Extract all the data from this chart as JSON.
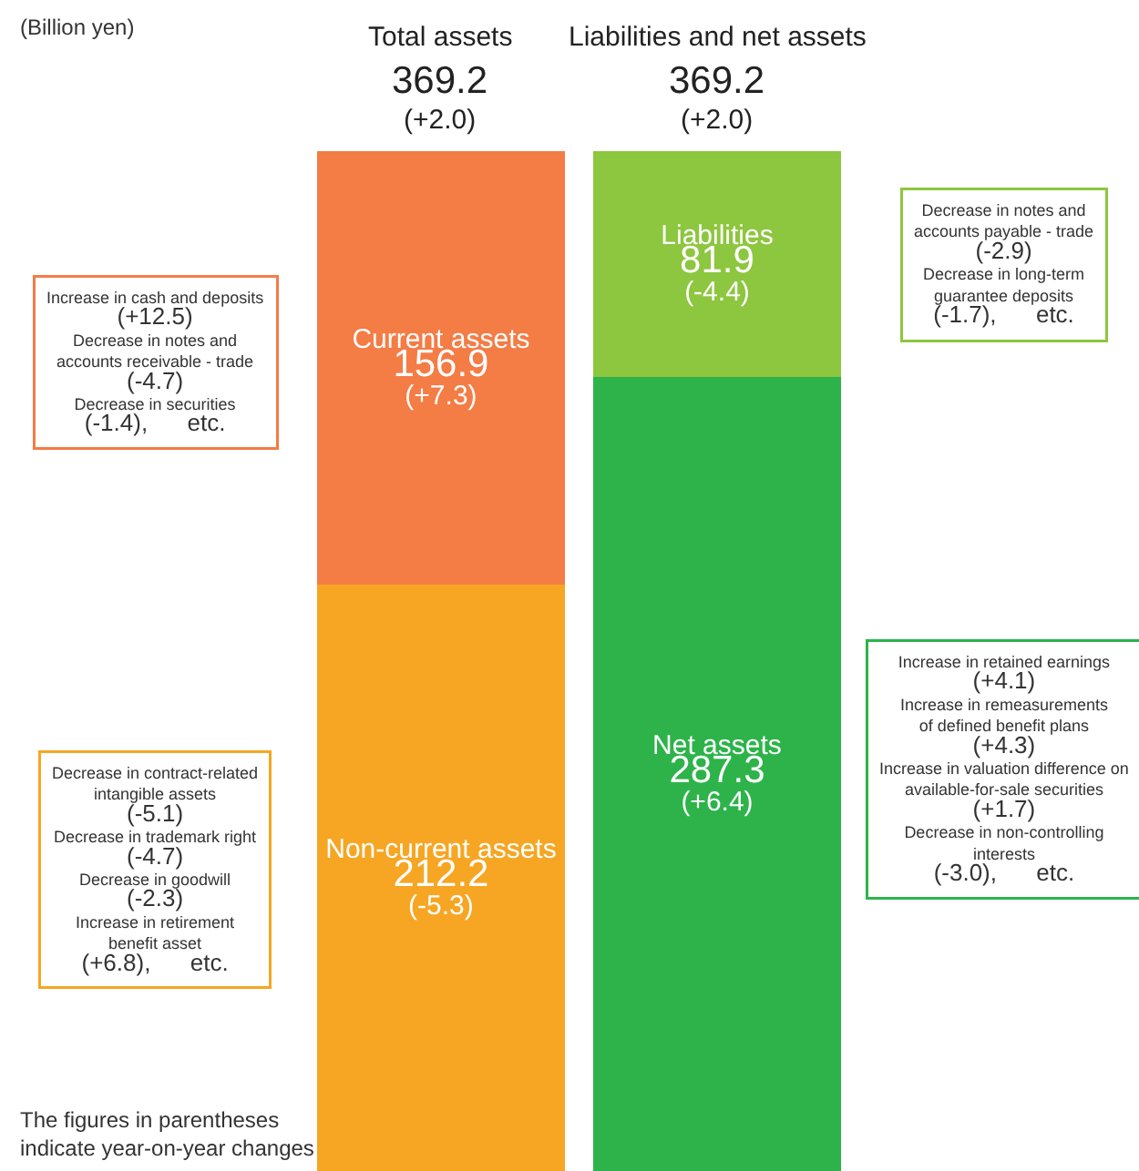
{
  "chart_data": {
    "type": "bar",
    "stacked": true,
    "legend": false,
    "tick_labels": false,
    "categories": [
      "Total assets",
      "Liabilities and net assets"
    ],
    "series": [
      {
        "name": "Non-current assets",
        "color": "#f6a623",
        "values": [
          212.2,
          null
        ],
        "value_labels": [
          "212.2\n(-5.3)",
          null
        ]
      },
      {
        "name": "Current assets",
        "color": "#f47c45",
        "values": [
          156.9,
          null
        ],
        "value_labels": [
          "156.9\n(+7.3)",
          null
        ]
      },
      {
        "name": "Net assets",
        "color": "#2db34a",
        "values": [
          null,
          287.3
        ],
        "value_labels": [
          null,
          "287.3\n(+6.4)"
        ]
      },
      {
        "name": "Liabilities",
        "color": "#8dc63f",
        "values": [
          null,
          81.9
        ],
        "value_labels": [
          null,
          "81.9\n(-4.4)"
        ]
      }
    ],
    "totals": [
      "369.2\n(+2.0)",
      "369.2\n(+2.0)"
    ],
    "annotations": [
      "(Billion yen)",
      "Increase in cash and deposits\n(+12.5)\nDecrease in notes and\naccounts receivable - trade\n(-4.7)\nDecrease in securities\n(-1.4),      etc.",
      "Decrease in contract-related\nintangible assets\n(-5.1)\nDecrease in trademark right\n(-4.7)\nDecrease in goodwill\n(-2.3)\nIncrease in retirement\nbenefit asset\n(+6.8),      etc.",
      "Decrease in notes and\naccounts payable - trade\n(-2.9)\nDecrease in long-term\nguarantee deposits\n(-1.7),      etc.",
      "Increase in retained earnings\n(+4.1)\nIncrease in remeasurements\nof defined benefit plans\n(+4.3)\nIncrease in valuation difference on\navailable-for-sale securities\n(+1.7)\nDecrease in non-controlling\ninterests\n(-3.0),      etc.",
      "The figures in parentheses\nindicate year-on-year changes"
    ]
  }
}
